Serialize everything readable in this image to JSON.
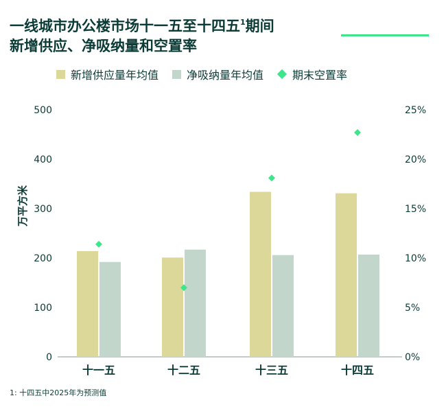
{
  "title_line1": "一线城市办公楼市场十一五至十四五",
  "title_sup": "1",
  "title_line1_end": "期间",
  "title_line2": "新增供应、净吸纳量和空置率",
  "footnote": "1: 十四五中2025年为预测值",
  "colors": {
    "supply": "#dcd89a",
    "absorption": "#c2d6cc",
    "vacancy": "#3ee58a",
    "text": "#0b3b36"
  },
  "chart_data": {
    "type": "bar",
    "categories": [
      "十一五",
      "十二五",
      "十三五",
      "十四五"
    ],
    "series": [
      {
        "name": "新增供应量年均值",
        "kind": "bar",
        "axis": "left",
        "values": [
          214,
          201,
          334,
          331
        ]
      },
      {
        "name": "净吸纳量年均值",
        "kind": "bar",
        "axis": "left",
        "values": [
          192,
          217,
          206,
          207
        ]
      },
      {
        "name": "期末空置率",
        "kind": "scatter",
        "axis": "right",
        "values": [
          11.4,
          7.0,
          18.1,
          22.7
        ]
      }
    ],
    "ylabel": "万平方米",
    "ylim": [
      0,
      500
    ],
    "yticks": [
      "0",
      "100",
      "200",
      "300",
      "400",
      "500"
    ],
    "y2lim": [
      0,
      25
    ],
    "y2ticks": [
      "0%",
      "5%",
      "10%",
      "15%",
      "20%",
      "25%"
    ],
    "grid": false,
    "legend": "top"
  }
}
